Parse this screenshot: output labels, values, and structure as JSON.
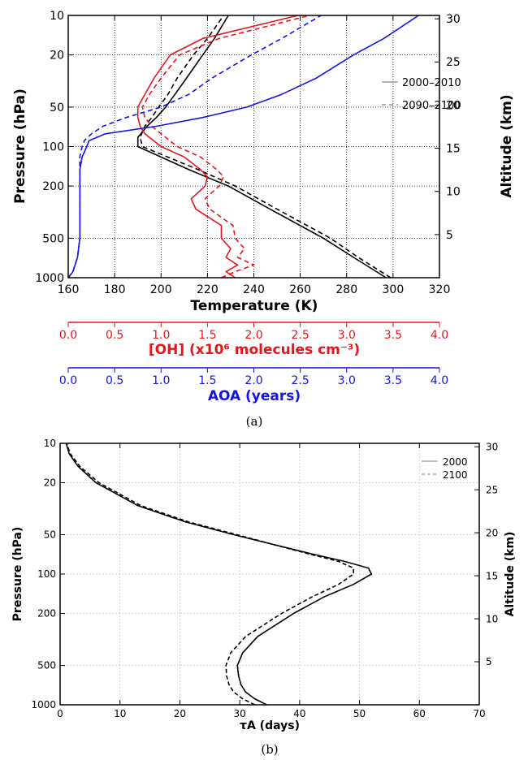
{
  "chart_data": [
    {
      "type": "line",
      "panel_label": "(a)",
      "xlabel": "Temperature (K)",
      "ylabel": "Pressure (hPa)",
      "ylabel_right": "Altitude (km)",
      "xlim": [
        160,
        320
      ],
      "ylim": [
        1000,
        10
      ],
      "yscale": "log",
      "x_ticks": [
        160,
        180,
        200,
        220,
        240,
        260,
        280,
        300,
        320
      ],
      "y_ticks": [
        10,
        20,
        50,
        100,
        200,
        500,
        1000
      ],
      "right_ticks": [
        5,
        10,
        15,
        20,
        25,
        30
      ],
      "grid": true,
      "legend_position": "right",
      "legend": [
        {
          "label": "2000–2010",
          "dash": "solid"
        },
        {
          "label": "2090–2100",
          "dash": "dashed"
        }
      ],
      "extra_axes": [
        {
          "label": "[OH] (x10⁶ molecules cm⁻³)",
          "color": "#e8141b",
          "ticks": [
            "0.0",
            "0.5",
            "1.0",
            "1.5",
            "2.0",
            "2.5",
            "3.0",
            "3.5",
            "4.0"
          ]
        },
        {
          "label": "AOA (years)",
          "color": "#1414e6",
          "ticks": [
            "0.0",
            "0.5",
            "1.0",
            "1.5",
            "2.0",
            "2.5",
            "3.0",
            "3.5",
            "4.0"
          ]
        }
      ],
      "series": [
        {
          "quantity": "temperature",
          "period": "2000–2010",
          "color": "#000000",
          "dash": "solid",
          "p": [
            1000,
            700,
            500,
            300,
            200,
            150,
            100,
            85,
            70,
            60,
            50,
            40,
            30,
            20,
            15,
            10
          ],
          "x": [
            297,
            283,
            270,
            247,
            229,
            212,
            190,
            190,
            194,
            198,
            202,
            206,
            211,
            218,
            223,
            229
          ]
        },
        {
          "quantity": "temperature",
          "period": "2090–2100",
          "color": "#000000",
          "dash": "dashed",
          "p": [
            1000,
            700,
            500,
            300,
            200,
            150,
            100,
            85,
            70,
            60,
            50,
            40,
            30,
            20,
            15,
            10
          ],
          "x": [
            299,
            285,
            273,
            250,
            232,
            216,
            192,
            191,
            193,
            196,
            199,
            203,
            207,
            214,
            220,
            227
          ]
        },
        {
          "quantity": "OH",
          "period": "2000–2010",
          "color": "#e8141b",
          "dash": "solid",
          "p": [
            1000,
            900,
            800,
            700,
            600,
            500,
            400,
            300,
            250,
            200,
            170,
            150,
            120,
            100,
            80,
            70,
            60,
            50,
            40,
            30,
            20,
            15,
            10
          ],
          "x": [
            232,
            228,
            233,
            228,
            230,
            226,
            226,
            215,
            213,
            219,
            220,
            217,
            210,
            200,
            193,
            191,
            190,
            190,
            193,
            197,
            204,
            218,
            259
          ]
        },
        {
          "quantity": "OH",
          "period": "2090–2100",
          "color": "#e8141b",
          "dash": "dashed",
          "p": [
            1000,
            900,
            800,
            700,
            600,
            500,
            400,
            300,
            250,
            200,
            170,
            150,
            120,
            100,
            80,
            70,
            60,
            50,
            40,
            30,
            20,
            15,
            10
          ],
          "x": [
            226,
            232,
            240,
            233,
            236,
            232,
            231,
            221,
            219,
            225,
            227,
            224,
            217,
            207,
            200,
            196,
            193,
            192,
            195,
            200,
            208,
            225,
            264
          ]
        },
        {
          "quantity": "AOA",
          "period": "2000–2010",
          "color": "#1414e6",
          "dash": "solid",
          "p": [
            1000,
            900,
            700,
            500,
            300,
            200,
            150,
            120,
            100,
            90,
            80,
            70,
            60,
            50,
            40,
            30,
            20,
            15,
            10
          ],
          "x": [
            160,
            162,
            164,
            165,
            165,
            165,
            165,
            166,
            168,
            169,
            176,
            198,
            218,
            237,
            252,
            267,
            283,
            296,
            311
          ]
        },
        {
          "quantity": "AOA",
          "period": "2090–2100",
          "color": "#1414e6",
          "dash": "dashed",
          "p": [
            1000,
            900,
            700,
            500,
            300,
            200,
            150,
            120,
            100,
            90,
            80,
            70,
            60,
            50,
            40,
            30,
            20,
            15,
            10
          ],
          "x": [
            160,
            162,
            164,
            165,
            165,
            165,
            165,
            165,
            166,
            167,
            170,
            175,
            185,
            200,
            212,
            222,
            239,
            252,
            269
          ]
        }
      ]
    },
    {
      "type": "line",
      "panel_label": "(b)",
      "xlabel": "τA (days)",
      "ylabel": "Pressure (hPa)",
      "ylabel_right": "Altitude (km)",
      "xlim": [
        0,
        70
      ],
      "ylim": [
        1000,
        10
      ],
      "yscale": "log",
      "x_ticks": [
        0,
        10,
        20,
        30,
        40,
        50,
        60,
        70
      ],
      "y_ticks": [
        10,
        20,
        50,
        100,
        200,
        500,
        1000
      ],
      "right_ticks": [
        5,
        10,
        15,
        20,
        25,
        30
      ],
      "grid": true,
      "legend_position": "top-right",
      "legend": [
        {
          "label": "2000",
          "dash": "solid"
        },
        {
          "label": "2100",
          "dash": "dashed"
        }
      ],
      "series": [
        {
          "name": "2000",
          "color": "#000000",
          "dash": "solid",
          "p": [
            1000,
            900,
            800,
            700,
            600,
            500,
            400,
            300,
            200,
            150,
            120,
            100,
            90,
            80,
            70,
            60,
            50,
            40,
            30,
            20,
            15,
            12,
            10
          ],
          "x": [
            34.5,
            32.5,
            31,
            30.2,
            29.8,
            29.6,
            30.5,
            33,
            39,
            44,
            49,
            52,
            51.5,
            47.5,
            42,
            36,
            29,
            21,
            13,
            6,
            3,
            1.5,
            1
          ]
        },
        {
          "name": "2100",
          "color": "#000000",
          "dash": "dashed",
          "p": [
            1000,
            900,
            800,
            700,
            600,
            500,
            400,
            300,
            200,
            150,
            120,
            100,
            90,
            80,
            70,
            60,
            50,
            40,
            30,
            20,
            15,
            12,
            10
          ],
          "x": [
            32.5,
            30.5,
            29,
            28.2,
            27.8,
            27.7,
            28.5,
            31,
            37,
            42,
            46.5,
            49,
            49,
            46.5,
            41.5,
            36,
            29.5,
            21.5,
            13.5,
            6.5,
            3.3,
            1.7,
            1.1
          ]
        }
      ]
    }
  ]
}
